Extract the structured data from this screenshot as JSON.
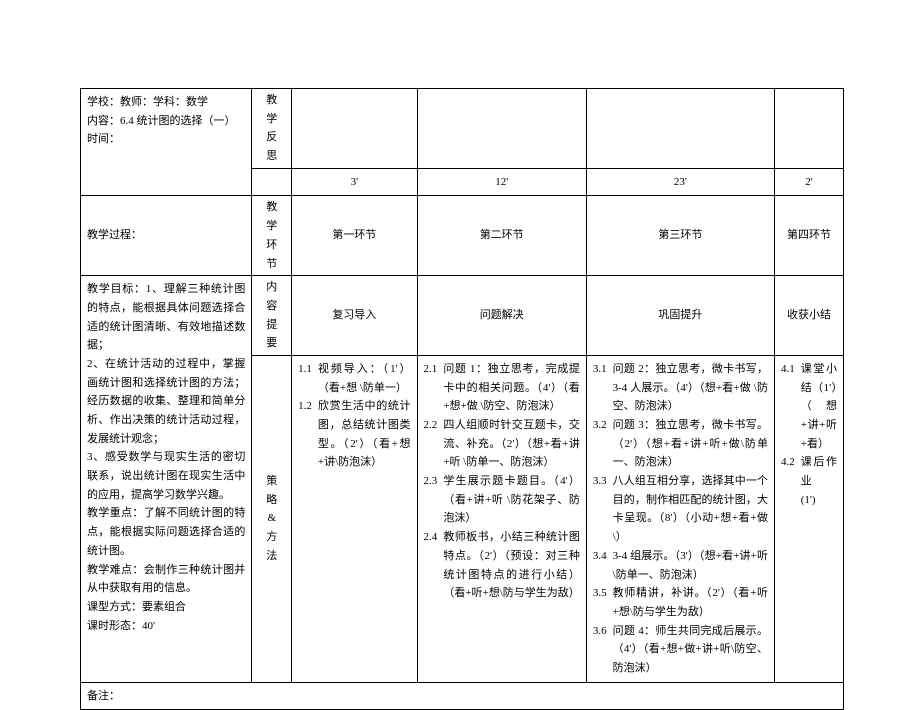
{
  "meta": {
    "line1": "学校：教师：学科：数学",
    "line2": "内容：6.4 统计图的选择（一）",
    "line3": "时间："
  },
  "header_labels": {
    "reflection": "教学反思",
    "process": "教学过程：",
    "phase": "教学环节",
    "content": "内容提要",
    "strategy": "策略&方法"
  },
  "times": {
    "t1": "3'",
    "t2": "12'",
    "t3": "23'",
    "t4": "2'"
  },
  "phases": {
    "p1": "第一环节",
    "p2": "第二环节",
    "p3": "第三环节",
    "p4": "第四环节"
  },
  "summaries": {
    "s1": "复习导入",
    "s2": "问题解决",
    "s3": "巩固提升",
    "s4": "收获小结"
  },
  "objectives": {
    "l1": "教学目标：1、理解三种统计图的特点，能根据具体问题选择合适的统计图清晰、有效地描述数据；",
    "l2": "2、在统计活动的过程中，掌握画统计图和选择统计图的方法；经历数据的收集、整理和简单分析、作出决策的统计活动过程，发展统计观念；",
    "l3": "3、感受数学与现实生活的密切联系，说出统计图在现实生活中的应用，提高学习数学兴趣。",
    "l4": "教学重点：了解不同统计图的特点，能根据实际问题选择合适的统计图。",
    "l5": "教学难点：会制作三种统计图并从中获取有用的信息。",
    "l6": "课型方式：要素组合",
    "l7": "课时形态：40'"
  },
  "col1": {
    "i1": {
      "n": "1.1",
      "t": "视频导入：（1'）（看+想 \\防单一）"
    },
    "i2": {
      "n": "1.2",
      "t": "欣赏生活中的统计图，总结统计图类型。（2'）（看+想+讲\\防泡沫）"
    }
  },
  "col2": {
    "i1": {
      "n": "2.1",
      "t": "问题 1：独立思考，完成提卡中的相关问题。（4'）（看+想+做 \\防空、防泡沫）"
    },
    "i2": {
      "n": "2.2",
      "t": "四人组顺时针交互题卡，交流、补充。（2'）（想+看+讲+听 \\防单一、防泡沫）"
    },
    "i3": {
      "n": "2.3",
      "t": "学生展示题卡题目。（4'）（看+讲+听 \\防花架子、防泡沫）"
    },
    "i4": {
      "n": "2.4",
      "t": "教师板书，小结三种统计图特点。（2'）（预设：对三种统计图特点的进行小结）（看+听+想\\防与学生为敌）"
    }
  },
  "col3": {
    "i1": {
      "n": "3.1",
      "t": "问题 2：独立思考，微卡书写，3-4 人展示。（4'）（想+看+做 \\防空、防泡沫）"
    },
    "i2": {
      "n": "3.2",
      "t": "问题 3：独立思考，微卡书写。（2'）（想+看+讲+听+做\\防单一、防泡沫）"
    },
    "i3": {
      "n": "3.3",
      "t": "八人组互相分享，选择其中一个目的，制作相匹配的统计图，大卡呈现。（8'）（小动+想+看+做\\）"
    },
    "i4": {
      "n": "3.4",
      "t": "3-4 组展示。（3'）（想+看+讲+听 \\防单一、防泡沫）"
    },
    "i5": {
      "n": "3.5",
      "t": "教师精讲，补讲。（2'）（看+听+想\\防与学生为敌）"
    },
    "i6": {
      "n": "3.6",
      "t": "问题 4：师生共同完成后展示。（4'）（看+想+做+讲+听\\防空、防泡沫）"
    }
  },
  "col4": {
    "i1": {
      "n": "4.1",
      "t": "课堂小结（1'）（想+讲+听+看）"
    },
    "i2": {
      "n": "4.2",
      "t": "课后作业\n(1')"
    }
  },
  "footer": {
    "note": "备注："
  }
}
